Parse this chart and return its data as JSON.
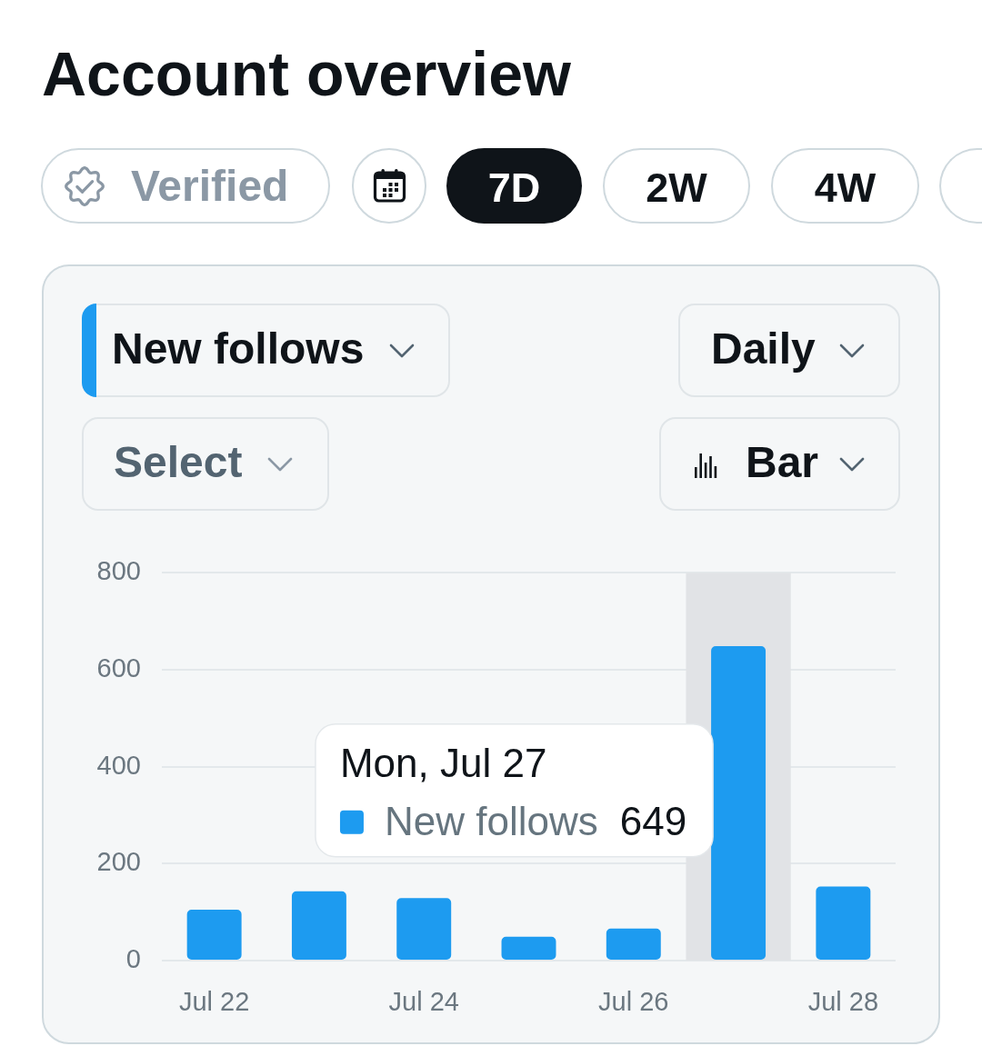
{
  "chart_data": {
    "type": "bar",
    "title": "Account overview",
    "x": [
      "--07-22",
      "--07-23",
      "--07-24",
      "--07-25",
      "--07-26",
      "--07-27",
      "--07-28"
    ],
    "series": [
      {
        "name": "New follows",
        "color": "#1d9bf0",
        "values": [
          105,
          143,
          129,
          49,
          66,
          649,
          153
        ]
      }
    ],
    "xlim": [
      "--07-21T12:00",
      "--07-28T12:00"
    ],
    "xticks": [
      {
        "value": "--07-22",
        "label": "Jul 22"
      },
      {
        "value": "--07-24",
        "label": "Jul 24"
      },
      {
        "value": "--07-26",
        "label": "Jul 26"
      },
      {
        "value": "--07-28",
        "label": "Jul 28"
      }
    ],
    "ylim": [
      0,
      800
    ],
    "yticks": [
      0,
      200,
      400,
      600,
      800
    ],
    "grid": "y",
    "bands": [
      {
        "axis": "x",
        "from": "--07-26T12:00",
        "to": "--07-27T12:00",
        "color": "#e1e3e6"
      }
    ],
    "annotations": [
      "Verified",
      "7D",
      "2W",
      "4W",
      "Daily",
      "Select",
      "Bar",
      "Mon, Jul 27",
      "649"
    ]
  }
}
